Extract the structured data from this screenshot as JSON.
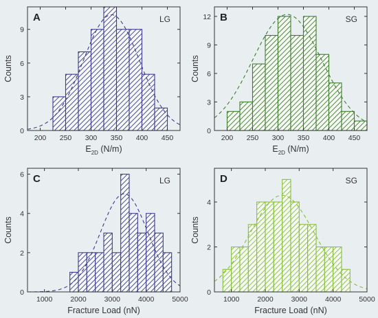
{
  "chart_data": [
    {
      "type": "bar",
      "panel": "A",
      "tag": "LG",
      "xlabel": "E",
      "xlabel_sub": "2D",
      "xlabel_unit": " (N/m)",
      "ylabel": "Counts",
      "xlim": [
        175,
        475
      ],
      "ylim": [
        0,
        11
      ],
      "xticks": [
        200,
        250,
        300,
        350,
        400,
        450
      ],
      "yticks": [
        0,
        3,
        6,
        9
      ],
      "bin_width": 25,
      "bins": [
        225,
        250,
        275,
        300,
        325,
        350,
        375,
        400,
        425
      ],
      "values": [
        3,
        5,
        7,
        9,
        11,
        9,
        9,
        5,
        2
      ],
      "color": "#3b3a8e",
      "fit": {
        "type": "gaussian",
        "mean": 340,
        "sd": 55,
        "peak": 10.3
      }
    },
    {
      "type": "bar",
      "panel": "B",
      "tag": "SG",
      "xlabel": "E",
      "xlabel_sub": "2D",
      "xlabel_unit": " (N/m)",
      "ylabel": "Counts",
      "xlim": [
        175,
        475
      ],
      "ylim": [
        0,
        13
      ],
      "xticks": [
        200,
        250,
        300,
        350,
        400,
        450
      ],
      "yticks": [
        0,
        3,
        6,
        9,
        12
      ],
      "bin_width": 25,
      "bins": [
        200,
        225,
        250,
        275,
        300,
        325,
        350,
        375,
        400,
        425,
        450
      ],
      "values": [
        2,
        3,
        7,
        10,
        12,
        10,
        12,
        8,
        5,
        2,
        1
      ],
      "color": "#3c7d2c",
      "fit": {
        "type": "gaussian",
        "mean": 318,
        "sd": 68,
        "peak": 12.2
      }
    },
    {
      "type": "bar",
      "panel": "C",
      "tag": "LG",
      "xlabel": "Fracture Load (nN)",
      "ylabel": "Counts",
      "xlim": [
        500,
        5000
      ],
      "ylim": [
        0,
        6.3
      ],
      "xticks": [
        1000,
        2000,
        3000,
        4000,
        5000
      ],
      "yticks": [
        0,
        2,
        4,
        6
      ],
      "bin_width": 250,
      "bins": [
        1750,
        2000,
        2250,
        2500,
        2750,
        3000,
        3250,
        3500,
        3750,
        4000,
        4250,
        4500
      ],
      "values": [
        1,
        2,
        2,
        2,
        3,
        2,
        6,
        4,
        3,
        4,
        3,
        2
      ],
      "color": "#3b3a8e",
      "fit": {
        "type": "gaussian",
        "mean": 3350,
        "sd": 700,
        "peak": 5.0
      }
    },
    {
      "type": "bar",
      "panel": "D",
      "tag": "SG",
      "xlabel": "Fracture Load (nN)",
      "ylabel": "Counts",
      "xlim": [
        500,
        5000
      ],
      "ylim": [
        0,
        5.5
      ],
      "xticks": [
        1000,
        2000,
        3000,
        4000,
        5000
      ],
      "yticks": [
        0,
        2,
        4
      ],
      "bin_width": 250,
      "bins": [
        750,
        1000,
        1250,
        1500,
        1750,
        2000,
        2250,
        2500,
        2750,
        3000,
        3250,
        3500,
        3750,
        4000,
        4250
      ],
      "values": [
        1,
        2,
        2,
        3,
        4,
        4,
        4,
        5,
        4,
        3,
        3,
        2,
        2,
        2,
        1
      ],
      "color": "#86bf3a",
      "fit": {
        "type": "gaussian",
        "mean": 2500,
        "sd": 950,
        "peak": 4.3
      }
    }
  ]
}
